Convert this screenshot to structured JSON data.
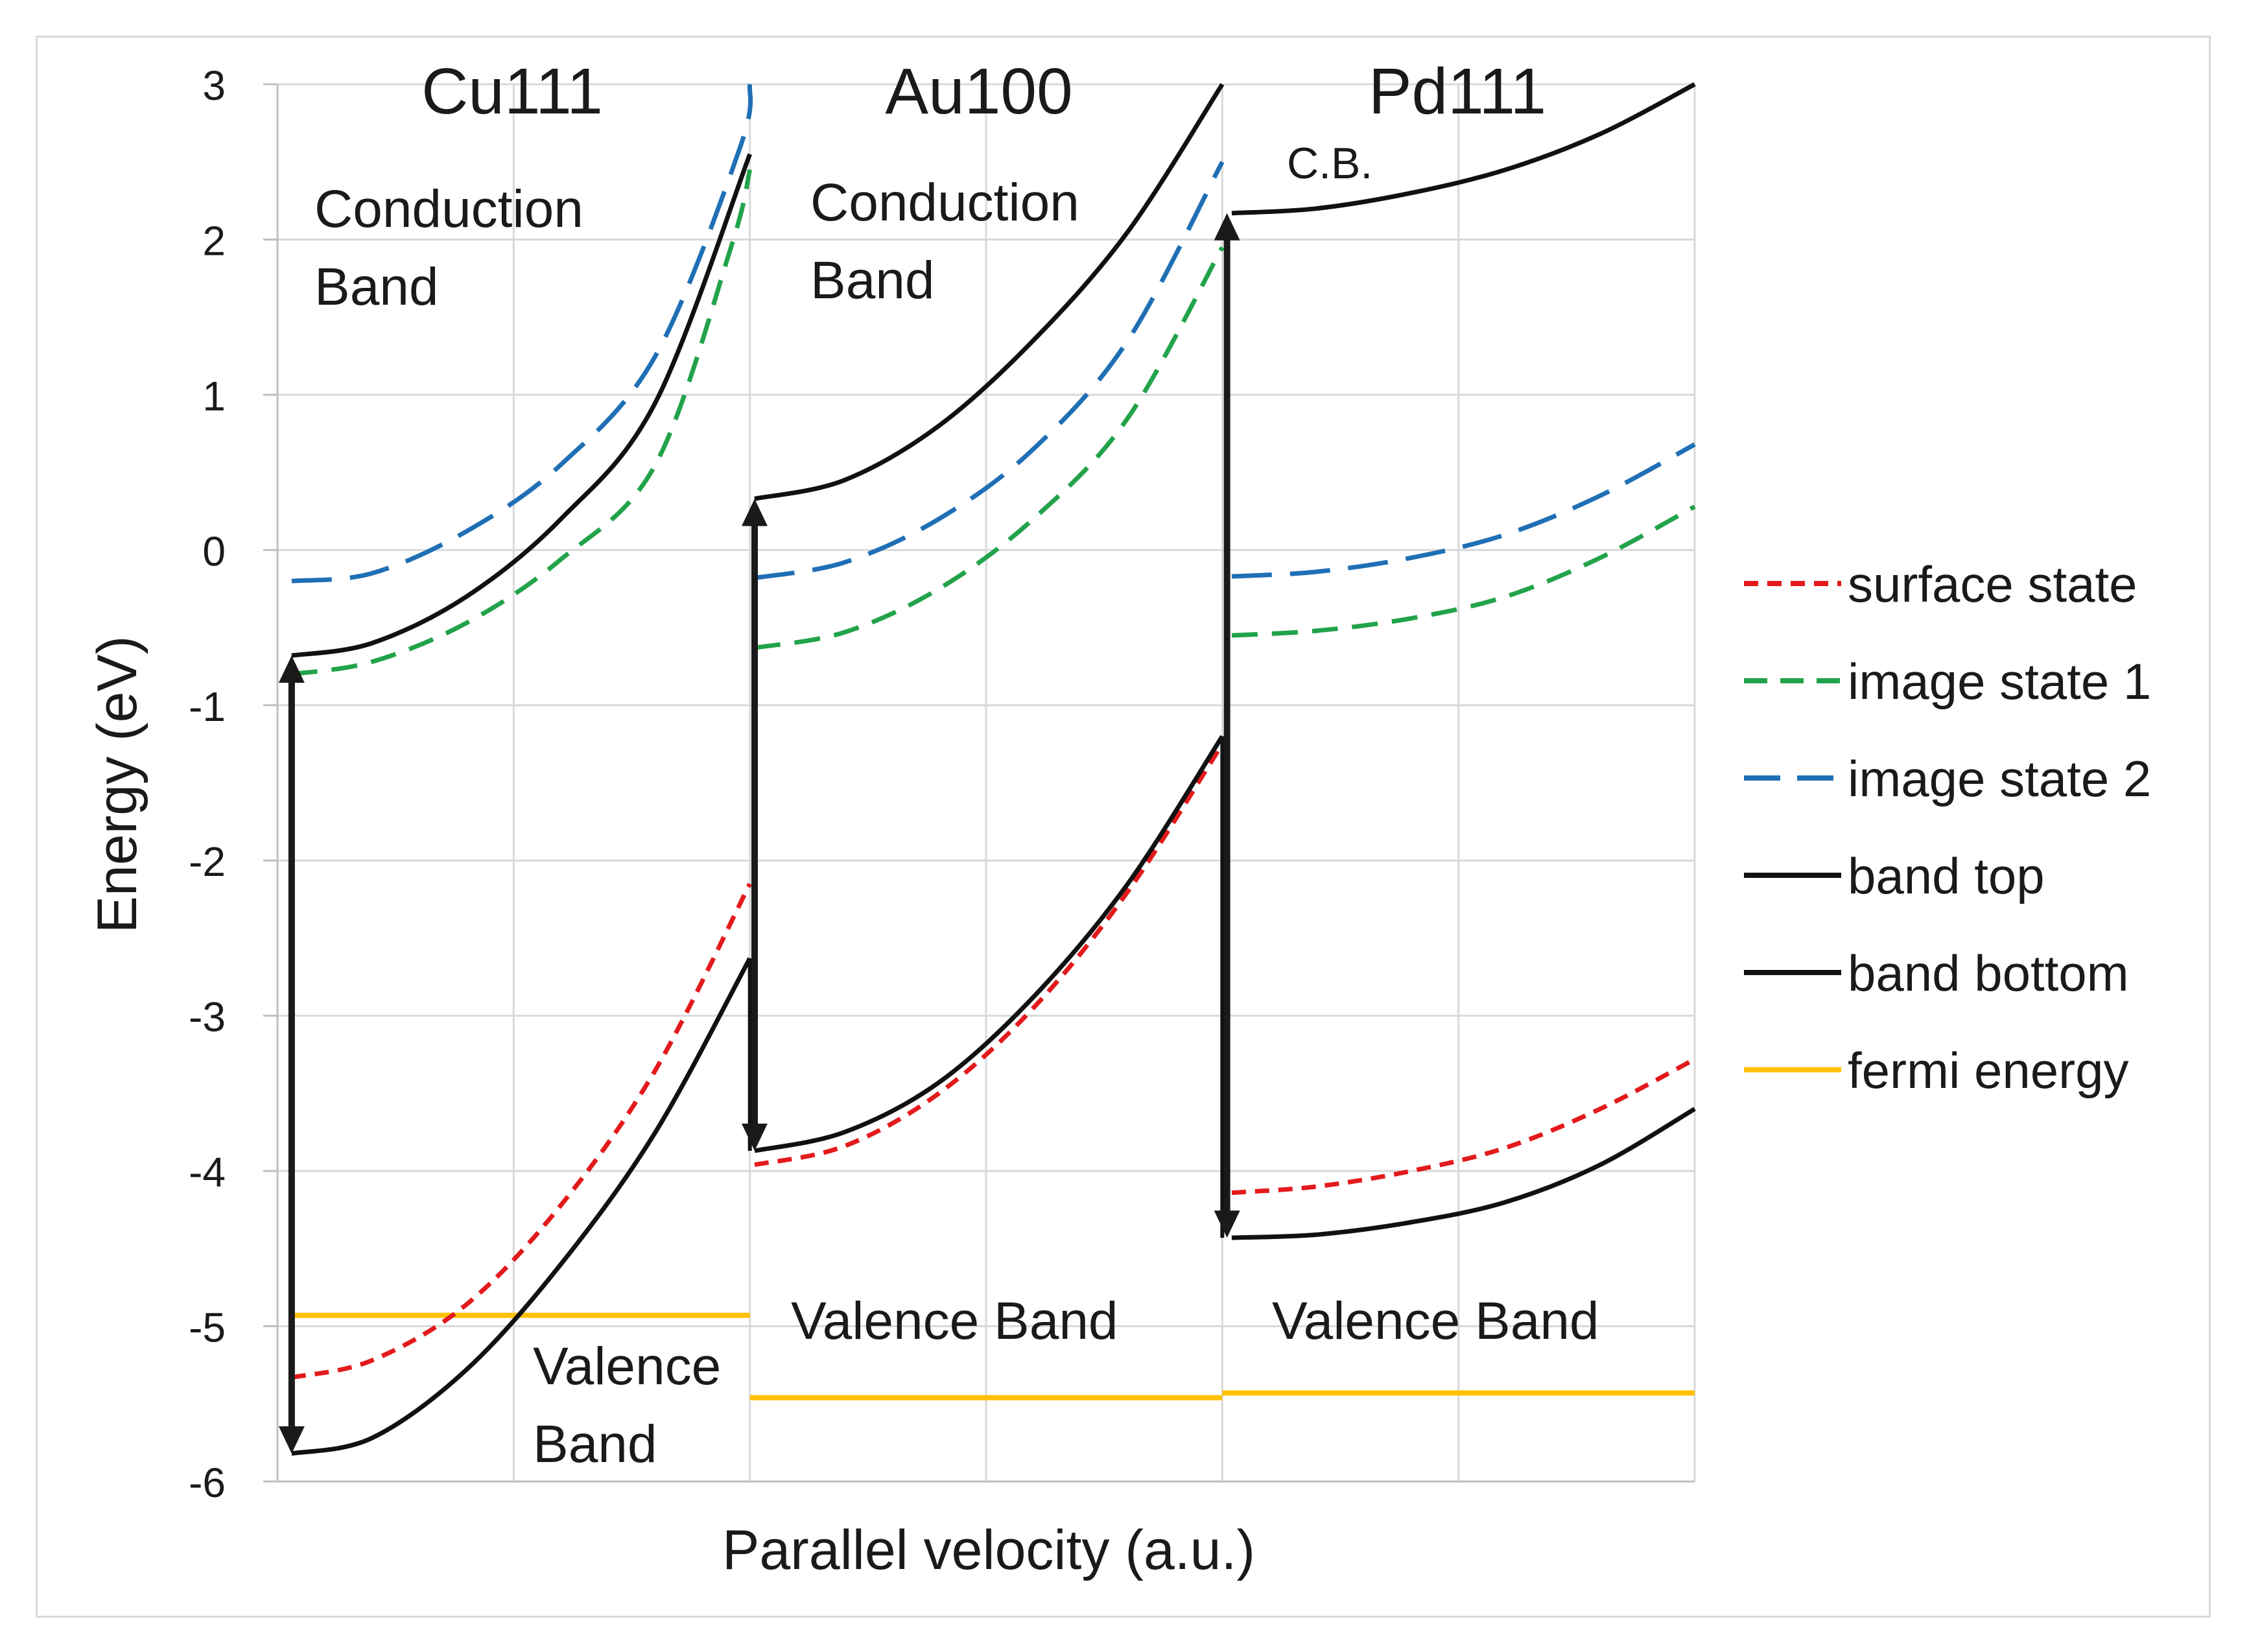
{
  "chart_data": {
    "type": "line",
    "xlabel": "Parallel velocity (a.u.)",
    "ylabel": "Energy (eV)",
    "xlim": [
      0,
      3
    ],
    "ylim": [
      -6,
      3
    ],
    "yticks": [
      "3",
      "2",
      "1",
      "0",
      "-1",
      "-2",
      "-3",
      "-4",
      "-5",
      "-6"
    ],
    "grid": true,
    "legend_position": "right",
    "panels": [
      {
        "name": "Cu111",
        "x_range": [
          0,
          1
        ],
        "labels": {
          "cb1": "Conduction",
          "cb2": "Band",
          "vb1": "Valence",
          "vb2": "Band"
        },
        "series": {
          "surface_state": {
            "x": [
              0.03,
              0.2,
              0.4,
              0.6,
              0.8,
              1.0
            ],
            "y": [
              -5.33,
              -5.22,
              -4.86,
              -4.22,
              -3.35,
              -2.15
            ]
          },
          "image_state_1": {
            "x": [
              0.03,
              0.2,
              0.4,
              0.6,
              0.8,
              0.96,
              1.0
            ],
            "y": [
              -0.8,
              -0.72,
              -0.47,
              -0.06,
              0.55,
              1.95,
              2.45
            ]
          },
          "image_state_2": {
            "x": [
              0.03,
              0.2,
              0.4,
              0.6,
              0.8,
              0.98,
              1.0
            ],
            "y": [
              -0.2,
              -0.15,
              0.12,
              0.55,
              1.25,
              2.6,
              3.0
            ]
          },
          "band_top": {
            "x": [
              0.03,
              0.2,
              0.4,
              0.6,
              0.8,
              1.0
            ],
            "y": [
              -0.68,
              -0.6,
              -0.3,
              0.2,
              0.95,
              2.55
            ]
          },
          "band_bottom": {
            "x": [
              0.03,
              0.2,
              0.4,
              0.6,
              0.8,
              1.0
            ],
            "y": [
              -5.82,
              -5.72,
              -5.28,
              -4.6,
              -3.75,
              -2.63
            ]
          },
          "fermi_energy": {
            "x": [
              0.03,
              1.0
            ],
            "y": [
              -4.93,
              -4.93
            ]
          }
        },
        "gap_arrow": {
          "x": 0.03,
          "y_top": -0.68,
          "y_bottom": -5.82
        }
      },
      {
        "name": "Au100",
        "x_range": [
          1,
          2
        ],
        "labels": {
          "cb1": "Conduction",
          "cb2": "Band",
          "vb1": "Valence Band"
        },
        "series": {
          "surface_state": {
            "x": [
              1.01,
              1.2,
              1.4,
              1.6,
              1.8,
              2.0
            ],
            "y": [
              -3.96,
              -3.84,
              -3.5,
              -2.95,
              -2.2,
              -1.25
            ]
          },
          "image_state_1": {
            "x": [
              1.01,
              1.2,
              1.4,
              1.6,
              1.8,
              2.0
            ],
            "y": [
              -0.63,
              -0.53,
              -0.25,
              0.2,
              0.85,
              1.95
            ]
          },
          "image_state_2": {
            "x": [
              1.01,
              1.2,
              1.4,
              1.6,
              1.8,
              2.0
            ],
            "y": [
              -0.18,
              -0.08,
              0.2,
              0.65,
              1.35,
              2.5
            ]
          },
          "band_top": {
            "x": [
              1.01,
              1.2,
              1.4,
              1.6,
              1.8,
              2.0
            ],
            "y": [
              0.33,
              0.45,
              0.8,
              1.35,
              2.05,
              3.0
            ]
          },
          "band_bottom": {
            "x": [
              1.01,
              1.2,
              1.4,
              1.6,
              1.8,
              2.0
            ],
            "y": [
              -3.87,
              -3.75,
              -3.43,
              -2.88,
              -2.15,
              -1.2
            ]
          },
          "fermi_energy": {
            "x": [
              1.0,
              2.0
            ],
            "y": [
              -5.46,
              -5.46
            ]
          }
        },
        "gap_arrow": {
          "x": 1.01,
          "y_top": 0.33,
          "y_bottom": -3.87
        }
      },
      {
        "name": "Pd111",
        "x_range": [
          2,
          3
        ],
        "labels": {
          "cb1": "C.B.",
          "vb1": "Valence Band"
        },
        "series": {
          "surface_state": {
            "x": [
              2.02,
              2.2,
              2.4,
              2.6,
              2.8,
              3.0
            ],
            "y": [
              -4.14,
              -4.1,
              -4.0,
              -3.85,
              -3.6,
              -3.28
            ]
          },
          "image_state_1": {
            "x": [
              2.02,
              2.2,
              2.4,
              2.6,
              2.8,
              3.0
            ],
            "y": [
              -0.55,
              -0.52,
              -0.44,
              -0.3,
              -0.05,
              0.28
            ]
          },
          "image_state_2": {
            "x": [
              2.02,
              2.2,
              2.4,
              2.6,
              2.8,
              3.0
            ],
            "y": [
              -0.17,
              -0.14,
              -0.05,
              0.1,
              0.35,
              0.68
            ]
          },
          "band_top": {
            "x": [
              2.02,
              2.2,
              2.4,
              2.6,
              2.8,
              3.0
            ],
            "y": [
              2.17,
              2.2,
              2.3,
              2.45,
              2.68,
              3.0
            ]
          },
          "band_bottom": {
            "x": [
              2.02,
              2.2,
              2.4,
              2.6,
              2.8,
              3.0
            ],
            "y": [
              -4.43,
              -4.41,
              -4.33,
              -4.2,
              -3.96,
              -3.6
            ]
          },
          "fermi_energy": {
            "x": [
              2.0,
              3.0
            ],
            "y": [
              -5.43,
              -5.43
            ]
          }
        },
        "gap_arrow": {
          "x": 2.01,
          "y_top": 2.17,
          "y_bottom": -4.43
        }
      }
    ],
    "connectors": [
      {
        "from": "Cu111 band_bottom",
        "x": 1.0,
        "y": [
          -2.63,
          -3.87
        ]
      },
      {
        "from": "Au100 band_bottom",
        "x": 2.0,
        "y": [
          -1.2,
          -4.43
        ]
      }
    ],
    "legend": [
      {
        "key": "surface_state",
        "label": "surface state",
        "color": "#e31a1c",
        "style": "short-dash"
      },
      {
        "key": "image_state_1",
        "label": "image state 1",
        "color": "#22a34a",
        "style": "dash"
      },
      {
        "key": "image_state_2",
        "label": "image state 2",
        "color": "#1f6fb5",
        "style": "long-dash"
      },
      {
        "key": "band_top",
        "label": "band top",
        "color": "#111111",
        "style": "solid"
      },
      {
        "key": "band_bottom",
        "label": "band bottom",
        "color": "#111111",
        "style": "solid"
      },
      {
        "key": "fermi_energy",
        "label": "fermi energy",
        "color": "#ffc000",
        "style": "solid"
      }
    ]
  }
}
